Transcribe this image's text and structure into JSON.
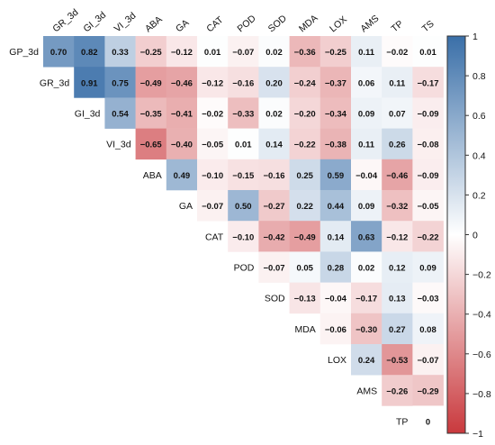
{
  "chart_data": {
    "type": "heatmap",
    "variables": [
      "GP_3d",
      "GR_3d",
      "GI_3d",
      "VI_3d",
      "ABA",
      "GA",
      "CAT",
      "POD",
      "SOD",
      "MDA",
      "LOX",
      "AMS",
      "TP",
      "TS"
    ],
    "column_labels": [
      "GR_3d",
      "GI_3d",
      "VI_3d",
      "ABA",
      "GA",
      "CAT",
      "POD",
      "SOD",
      "MDA",
      "LOX",
      "AMS",
      "TP",
      "TS"
    ],
    "row_labels": [
      "GP_3d",
      "GR_3d",
      "GI_3d",
      "VI_3d",
      "ABA",
      "GA",
      "CAT",
      "POD",
      "SOD",
      "MDA",
      "LOX",
      "AMS",
      "TP"
    ],
    "values": [
      [
        0.7,
        0.82,
        0.33,
        -0.25,
        -0.12,
        0.01,
        -0.07,
        0.02,
        -0.36,
        -0.25,
        0.11,
        -0.02,
        0.01
      ],
      [
        0.91,
        0.75,
        -0.49,
        -0.46,
        -0.12,
        -0.16,
        0.2,
        -0.24,
        -0.37,
        0.06,
        0.11,
        -0.17
      ],
      [
        0.54,
        -0.35,
        -0.41,
        -0.02,
        -0.33,
        0.02,
        -0.2,
        -0.34,
        0.09,
        0.07,
        -0.09
      ],
      [
        -0.65,
        -0.4,
        -0.05,
        0.01,
        0.14,
        -0.22,
        -0.38,
        0.11,
        0.26,
        -0.08
      ],
      [
        0.49,
        -0.1,
        -0.15,
        -0.16,
        0.25,
        0.59,
        -0.04,
        -0.46,
        -0.09
      ],
      [
        -0.07,
        0.5,
        -0.27,
        0.22,
        0.44,
        0.09,
        -0.32,
        -0.05
      ],
      [
        -0.1,
        -0.42,
        -0.49,
        0.14,
        0.63,
        -0.12,
        -0.22
      ],
      [
        -0.07,
        0.05,
        0.28,
        0.02,
        0.12,
        0.09
      ],
      [
        -0.13,
        -0.04,
        -0.17,
        0.13,
        -0.03
      ],
      [
        -0.06,
        -0.3,
        0.27,
        0.08
      ],
      [
        0.24,
        -0.53,
        -0.07
      ],
      [
        -0.26,
        -0.29
      ],
      [
        0
      ]
    ],
    "value_labels": [
      [
        "0.70",
        "0.82",
        "0.33",
        "−0.25",
        "−0.12",
        "0.01",
        "−0.07",
        "0.02",
        "−0.36",
        "−0.25",
        "0.11",
        "−0.02",
        "0.01"
      ],
      [
        "0.91",
        "0.75",
        "−0.49",
        "−0.46",
        "−0.12",
        "−0.16",
        "0.20",
        "−0.24",
        "−0.37",
        "0.06",
        "0.11",
        "−0.17"
      ],
      [
        "0.54",
        "−0.35",
        "−0.41",
        "−0.02",
        "−0.33",
        "0.02",
        "−0.20",
        "−0.34",
        "0.09",
        "0.07",
        "−0.09"
      ],
      [
        "−0.65",
        "−0.40",
        "−0.05",
        "0.01",
        "0.14",
        "−0.22",
        "−0.38",
        "0.11",
        "0.26",
        "−0.08"
      ],
      [
        "0.49",
        "−0.10",
        "−0.15",
        "−0.16",
        "0.25",
        "0.59",
        "−0.04",
        "−0.46",
        "−0.09"
      ],
      [
        "−0.07",
        "0.50",
        "−0.27",
        "0.22",
        "0.44",
        "0.09",
        "−0.32",
        "−0.05"
      ],
      [
        "−0.10",
        "−0.42",
        "−0.49",
        "0.14",
        "0.63",
        "−0.12",
        "−0.22"
      ],
      [
        "−0.07",
        "0.05",
        "0.28",
        "0.02",
        "0.12",
        "0.09"
      ],
      [
        "−0.13",
        "−0.04",
        "−0.17",
        "0.13",
        "−0.03"
      ],
      [
        "−0.06",
        "−0.30",
        "0.27",
        "0.08"
      ],
      [
        "0.24",
        "−0.53",
        "−0.07"
      ],
      [
        "−0.26",
        "−0.29"
      ],
      [
        "0"
      ]
    ],
    "colorbar": {
      "range": [
        -1,
        1
      ],
      "ticks": [
        1,
        0.8,
        0.6,
        0.4,
        0.2,
        0,
        -0.2,
        -0.4,
        -0.6,
        -0.8,
        -1
      ],
      "tick_labels": [
        "1",
        "0.8",
        "0.6",
        "0.4",
        "0.2",
        "0",
        "−0.2",
        "−0.4",
        "−0.6",
        "−0.8",
        "−1"
      ],
      "position": "right"
    },
    "colors": {
      "negative": "#c9393d",
      "zero": "#ffffff",
      "positive": "#3a6fa8"
    },
    "layout_note_free": true,
    "title": "",
    "xlabel": "",
    "ylabel": ""
  }
}
